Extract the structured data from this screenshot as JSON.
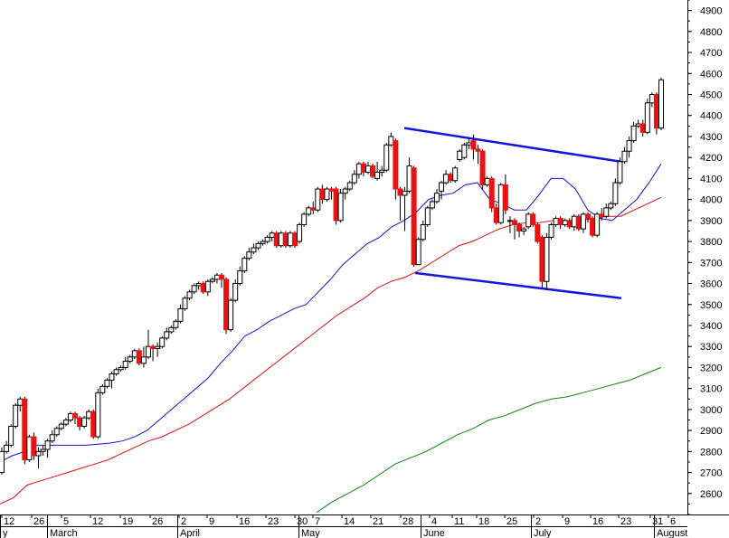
{
  "chart_data": {
    "type": "candlestick",
    "y_axis": {
      "position": "right",
      "min": 2500,
      "max": 4950,
      "ticks": [
        2600,
        2700,
        2800,
        2900,
        3000,
        3100,
        3200,
        3300,
        3400,
        3500,
        3600,
        3700,
        3800,
        3900,
        4000,
        4100,
        4200,
        4300,
        4400,
        4500,
        4600,
        4700,
        4800,
        4900
      ]
    },
    "x_axis": {
      "day_labels": [
        "12",
        "26",
        "5",
        "12",
        "19",
        "26",
        "2",
        "9",
        "16",
        "23",
        "30",
        "7",
        "14",
        "21",
        "28",
        "4",
        "11",
        "18",
        "25",
        "2",
        "9",
        "16",
        "23",
        "31",
        "6"
      ],
      "month_labels": [
        "y",
        "March",
        "April",
        "May",
        "June",
        "July",
        "August"
      ]
    },
    "grid": false,
    "colors": {
      "up": "#ffffff",
      "down": "#ee1111",
      "short_ma": "#1010cc",
      "mid_ma": "#dd1111",
      "long_ma": "#118811",
      "channel": "#1515dd"
    },
    "candles": [
      [
        2700,
        2800,
        2690,
        2820
      ],
      [
        2800,
        2830,
        2790,
        2850
      ],
      [
        2830,
        2920,
        2820,
        2930
      ],
      [
        2920,
        3020,
        2910,
        3030
      ],
      [
        3020,
        3050,
        2990,
        3060
      ],
      [
        3050,
        2760,
        2740,
        3060
      ],
      [
        2760,
        2870,
        2750,
        2880
      ],
      [
        2870,
        2780,
        2760,
        2890
      ],
      [
        2780,
        2800,
        2720,
        2820
      ],
      [
        2800,
        2810,
        2780,
        2830
      ],
      [
        2810,
        2850,
        2770,
        2860
      ],
      [
        2850,
        2880,
        2840,
        2900
      ],
      [
        2880,
        2910,
        2870,
        2920
      ],
      [
        2910,
        2930,
        2900,
        2940
      ],
      [
        2930,
        2950,
        2920,
        2960
      ],
      [
        2950,
        2980,
        2940,
        2990
      ],
      [
        2980,
        2960,
        2930,
        2990
      ],
      [
        2960,
        2920,
        2900,
        2970
      ],
      [
        2920,
        2960,
        2910,
        2970
      ],
      [
        2960,
        2990,
        2950,
        3000
      ],
      [
        2990,
        2870,
        2860,
        3000
      ],
      [
        2870,
        3080,
        2860,
        3100
      ],
      [
        3080,
        3110,
        3070,
        3120
      ],
      [
        3110,
        3140,
        3100,
        3150
      ],
      [
        3140,
        3170,
        3100,
        3180
      ],
      [
        3170,
        3190,
        3160,
        3200
      ],
      [
        3190,
        3200,
        3180,
        3210
      ],
      [
        3200,
        3230,
        3190,
        3250
      ],
      [
        3230,
        3250,
        3220,
        3260
      ],
      [
        3250,
        3280,
        3240,
        3290
      ],
      [
        3280,
        3220,
        3210,
        3290
      ],
      [
        3220,
        3250,
        3200,
        3300
      ],
      [
        3250,
        3300,
        3240,
        3380
      ],
      [
        3300,
        3290,
        3230,
        3310
      ],
      [
        3290,
        3300,
        3250,
        3320
      ],
      [
        3300,
        3340,
        3290,
        3350
      ],
      [
        3340,
        3370,
        3330,
        3390
      ],
      [
        3370,
        3390,
        3360,
        3400
      ],
      [
        3390,
        3420,
        3380,
        3430
      ],
      [
        3420,
        3480,
        3410,
        3500
      ],
      [
        3480,
        3530,
        3470,
        3540
      ],
      [
        3530,
        3560,
        3520,
        3570
      ],
      [
        3560,
        3590,
        3550,
        3600
      ],
      [
        3590,
        3600,
        3570,
        3610
      ],
      [
        3600,
        3560,
        3550,
        3610
      ],
      [
        3560,
        3610,
        3540,
        3620
      ],
      [
        3610,
        3620,
        3600,
        3630
      ],
      [
        3620,
        3640,
        3600,
        3650
      ],
      [
        3640,
        3620,
        3580,
        3650
      ],
      [
        3620,
        3380,
        3360,
        3630
      ],
      [
        3380,
        3520,
        3370,
        3530
      ],
      [
        3520,
        3600,
        3510,
        3620
      ],
      [
        3600,
        3660,
        3590,
        3680
      ],
      [
        3660,
        3720,
        3650,
        3730
      ],
      [
        3720,
        3750,
        3710,
        3770
      ],
      [
        3750,
        3770,
        3740,
        3790
      ],
      [
        3770,
        3790,
        3760,
        3800
      ],
      [
        3790,
        3800,
        3780,
        3810
      ],
      [
        3800,
        3820,
        3790,
        3830
      ],
      [
        3820,
        3840,
        3800,
        3850
      ],
      [
        3840,
        3780,
        3770,
        3850
      ],
      [
        3780,
        3840,
        3770,
        3850
      ],
      [
        3840,
        3780,
        3770,
        3850
      ],
      [
        3780,
        3840,
        3770,
        3850
      ],
      [
        3840,
        3780,
        3770,
        3850
      ],
      [
        3800,
        3880,
        3790,
        3890
      ],
      [
        3880,
        3930,
        3870,
        3940
      ],
      [
        3930,
        3960,
        3920,
        3970
      ],
      [
        3960,
        3950,
        3930,
        3990
      ],
      [
        3950,
        4050,
        3940,
        4060
      ],
      [
        4050,
        4000,
        3980,
        4070
      ],
      [
        4000,
        4050,
        3990,
        4060
      ],
      [
        4050,
        4040,
        4000,
        4060
      ],
      [
        4050,
        3900,
        3880,
        4060
      ],
      [
        3900,
        4030,
        3890,
        4050
      ],
      [
        4030,
        4050,
        4000,
        4060
      ],
      [
        4050,
        4080,
        4040,
        4090
      ],
      [
        4080,
        4120,
        4070,
        4140
      ],
      [
        4120,
        4170,
        4100,
        4180
      ],
      [
        4170,
        4130,
        4110,
        4180
      ],
      [
        4130,
        4160,
        4120,
        4180
      ],
      [
        4160,
        4110,
        4100,
        4170
      ],
      [
        4100,
        4130,
        4090,
        4180
      ],
      [
        4130,
        4140,
        4110,
        4160
      ],
      [
        4140,
        4260,
        4130,
        4270
      ],
      [
        4260,
        4300,
        4250,
        4320
      ],
      [
        4280,
        4050,
        4000,
        4290
      ],
      [
        4050,
        4020,
        3900,
        4060
      ],
      [
        4020,
        4040,
        3850,
        4060
      ],
      [
        4040,
        4160,
        4030,
        4200
      ],
      [
        4150,
        3690,
        3680,
        4160
      ],
      [
        3690,
        3810,
        3700,
        3820
      ],
      [
        3810,
        3880,
        3800,
        3900
      ],
      [
        3880,
        3960,
        3870,
        3970
      ],
      [
        3960,
        3990,
        3950,
        4000
      ],
      [
        3990,
        4030,
        3980,
        4050
      ],
      [
        4040,
        4080,
        4000,
        4090
      ],
      [
        4080,
        4120,
        4070,
        4140
      ],
      [
        4120,
        4090,
        4080,
        4130
      ],
      [
        4090,
        4150,
        4080,
        4160
      ],
      [
        4190,
        4230,
        4180,
        4240
      ],
      [
        4200,
        4260,
        4190,
        4270
      ],
      [
        4260,
        4270,
        4240,
        4290
      ],
      [
        4280,
        4240,
        4190,
        4310
      ],
      [
        4240,
        4230,
        4170,
        4260
      ],
      [
        4230,
        4070,
        4050,
        4240
      ],
      [
        4070,
        4100,
        4060,
        4110
      ],
      [
        4100,
        3960,
        3940,
        4110
      ],
      [
        3960,
        3890,
        3880,
        3980
      ],
      [
        3890,
        4070,
        3880,
        4080
      ],
      [
        4070,
        3950,
        3930,
        4120
      ],
      [
        3900,
        3900,
        3840,
        3920
      ],
      [
        3900,
        3880,
        3810,
        3910
      ],
      [
        3880,
        3850,
        3820,
        3890
      ],
      [
        3850,
        3860,
        3830,
        3870
      ],
      [
        3870,
        3930,
        3860,
        3940
      ],
      [
        3930,
        3880,
        3870,
        3940
      ],
      [
        3880,
        3800,
        3790,
        3890
      ],
      [
        3820,
        3610,
        3580,
        3830
      ],
      [
        3610,
        3820,
        3570,
        3840
      ],
      [
        3820,
        3880,
        3810,
        3890
      ],
      [
        3880,
        3910,
        3870,
        3920
      ],
      [
        3910,
        3880,
        3860,
        3920
      ],
      [
        3880,
        3900,
        3870,
        3910
      ],
      [
        3900,
        3870,
        3860,
        3910
      ],
      [
        3870,
        3920,
        3850,
        3930
      ],
      [
        3920,
        3860,
        3850,
        3930
      ],
      [
        3860,
        3930,
        3840,
        3940
      ],
      [
        3930,
        3910,
        3890,
        3940
      ],
      [
        3910,
        3830,
        3820,
        3920
      ],
      [
        3830,
        3930,
        3820,
        3940
      ],
      [
        3930,
        3920,
        3900,
        3960
      ],
      [
        3920,
        3960,
        3910,
        3980
      ],
      [
        3960,
        3980,
        3950,
        3990
      ],
      [
        3980,
        4080,
        3970,
        4100
      ],
      [
        4080,
        4180,
        4070,
        4200
      ],
      [
        4180,
        4230,
        4170,
        4250
      ],
      [
        4230,
        4280,
        4200,
        4300
      ],
      [
        4280,
        4350,
        4270,
        4370
      ],
      [
        4350,
        4360,
        4340,
        4380
      ],
      [
        4360,
        4320,
        4300,
        4380
      ],
      [
        4320,
        4460,
        4310,
        4480
      ],
      [
        4460,
        4500,
        4440,
        4510
      ],
      [
        4500,
        4340,
        4310,
        4510
      ],
      [
        4340,
        4570,
        4330,
        4580
      ]
    ],
    "series": [
      {
        "values": [
          2750,
          2780,
          2800,
          2830,
          2830,
          2830,
          2830,
          2830,
          2835,
          2840,
          2850,
          2870,
          2900,
          2950,
          3000,
          3050,
          3100,
          3150,
          3220,
          3280,
          3350,
          3380,
          3420,
          3450,
          3480,
          3500,
          3560,
          3620,
          3690,
          3740,
          3790,
          3820,
          3870,
          3900,
          3940,
          4000,
          4020,
          4030,
          4070,
          4080,
          4000,
          3980,
          3950,
          3950,
          4020,
          4100,
          4100,
          4050,
          3950,
          3910,
          3900,
          3950,
          4000,
          4080,
          4170
        ]
      },
      {
        "values": [
          2550,
          2580,
          2640,
          2660,
          2680,
          2700,
          2720,
          2740,
          2760,
          2790,
          2820,
          2850,
          2870,
          2900,
          2930,
          2970,
          3010,
          3050,
          3100,
          3150,
          3200,
          3250,
          3300,
          3350,
          3400,
          3450,
          3490,
          3530,
          3580,
          3610,
          3630,
          3660,
          3700,
          3740,
          3780,
          3800,
          3830,
          3860,
          3880,
          3890,
          3890,
          3900,
          3900,
          3900,
          3910,
          3920,
          3920,
          3950,
          3980,
          4010
        ]
      },
      {
        "values": [
          2510,
          2560,
          2600,
          2640,
          2690,
          2740,
          2770,
          2800,
          2840,
          2880,
          2910,
          2950,
          2970,
          3000,
          3030,
          3050,
          3060,
          3080,
          3100,
          3120,
          3140,
          3170,
          3200
        ]
      }
    ],
    "annotations": [
      {
        "kind": "trendline",
        "from": [
          4340,
          4350
        ],
        "to": [
          4180,
          4180
        ]
      },
      {
        "kind": "trendline",
        "from": [
          3650,
          3650
        ],
        "to": [
          3530,
          3530
        ]
      }
    ]
  }
}
